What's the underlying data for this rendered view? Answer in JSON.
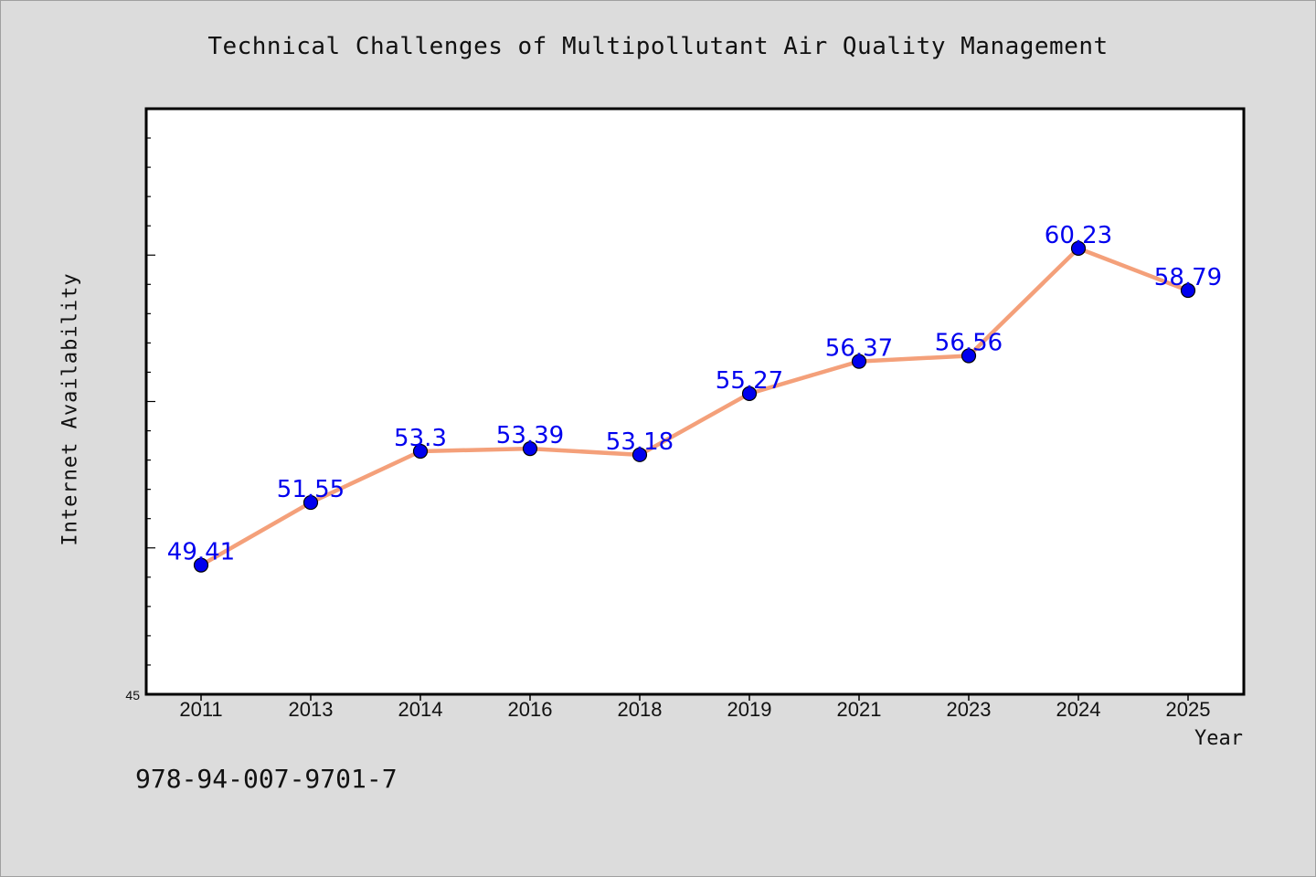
{
  "chart_data": {
    "type": "line",
    "title": "Technical Challenges of Multipollutant Air Quality Management",
    "xlabel": "Year",
    "ylabel": "Internet Availability",
    "categories": [
      "2011",
      "2013",
      "2014",
      "2016",
      "2018",
      "2019",
      "2021",
      "2023",
      "2024",
      "2025"
    ],
    "series": [
      {
        "values": [
          49.41,
          51.55,
          53.3,
          53.39,
          53.18,
          55.27,
          56.37,
          56.56,
          60.23,
          58.79
        ],
        "line_color": "#f4a07a",
        "marker_color": "#0000ee"
      }
    ],
    "data_labels": [
      "49.41",
      "51.55",
      "53.3",
      "53.39",
      "53.18",
      "55.27",
      "56.37",
      "56.56",
      "60.23",
      "58.79"
    ],
    "y_tick_label": "45",
    "ylim": [
      45,
      65
    ],
    "grid": false,
    "legend": "none",
    "label_color": "#0000ee"
  },
  "footnote": "978-94-007-9701-7"
}
